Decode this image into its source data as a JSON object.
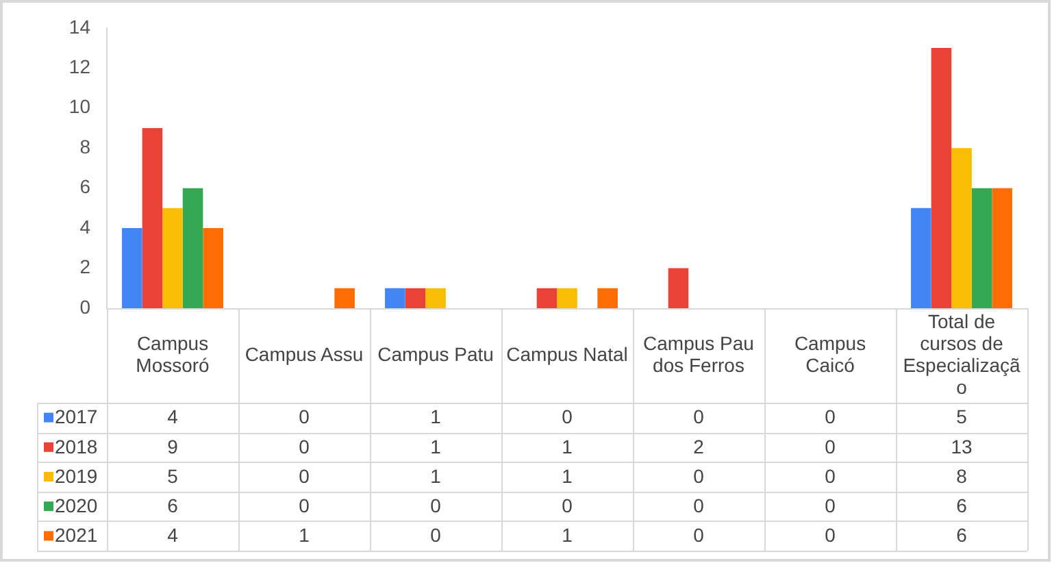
{
  "chart_data": {
    "type": "bar",
    "categories": [
      "Campus Mossoró",
      "Campus Assu",
      "Campus Patu",
      "Campus Natal",
      "Campus Pau dos Ferros",
      "Campus Caicó",
      "Total de cursos de Especialização"
    ],
    "series": [
      {
        "name": "2017",
        "color": "#4285f4",
        "values": [
          4,
          0,
          1,
          0,
          0,
          0,
          5
        ]
      },
      {
        "name": "2018",
        "color": "#ea4335",
        "values": [
          9,
          0,
          1,
          1,
          2,
          0,
          13
        ]
      },
      {
        "name": "2019",
        "color": "#fbbc04",
        "values": [
          5,
          0,
          1,
          1,
          0,
          0,
          8
        ]
      },
      {
        "name": "2020",
        "color": "#34a853",
        "values": [
          6,
          0,
          0,
          0,
          0,
          0,
          6
        ]
      },
      {
        "name": "2021",
        "color": "#ff6d01",
        "values": [
          4,
          1,
          0,
          1,
          0,
          0,
          6
        ]
      }
    ],
    "ylim": [
      0,
      14
    ],
    "yticks": [
      0,
      2,
      4,
      6,
      8,
      10,
      12,
      14
    ],
    "legend": "bottom left",
    "data_labels": true
  }
}
